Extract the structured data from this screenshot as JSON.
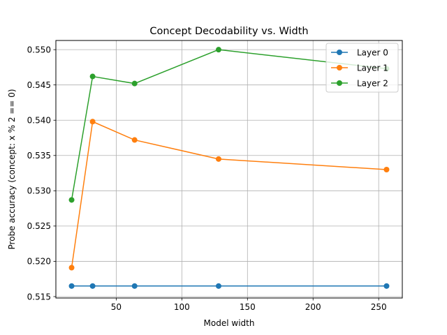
{
  "chart_data": {
    "type": "line",
    "title": "Concept Decodability vs. Width",
    "xlabel": "Model width",
    "ylabel": "Probe accuracy (concept: x % 2 == 0)",
    "x": [
      16,
      32,
      64,
      128,
      256
    ],
    "xlim": [
      4,
      268
    ],
    "ylim": [
      0.5148,
      0.5513
    ],
    "xticks": [
      50,
      100,
      150,
      200,
      250
    ],
    "yticks": [
      0.515,
      0.52,
      0.525,
      0.53,
      0.535,
      0.54,
      0.545,
      0.55
    ],
    "ytick_labels": [
      "0.515",
      "0.520",
      "0.525",
      "0.530",
      "0.535",
      "0.540",
      "0.545",
      "0.550"
    ],
    "grid": true,
    "legend_position": "top-right",
    "series": [
      {
        "name": "Layer 0",
        "color": "#1f77b4",
        "values": [
          0.5165,
          0.5165,
          0.5165,
          0.5165,
          0.5165
        ]
      },
      {
        "name": "Layer 1",
        "color": "#ff7f0e",
        "values": [
          0.5191,
          0.5398,
          0.5372,
          0.5345,
          0.533
        ]
      },
      {
        "name": "Layer 2",
        "color": "#2ca02c",
        "values": [
          0.5287,
          0.5462,
          0.5452,
          0.55,
          0.5473
        ]
      }
    ]
  }
}
